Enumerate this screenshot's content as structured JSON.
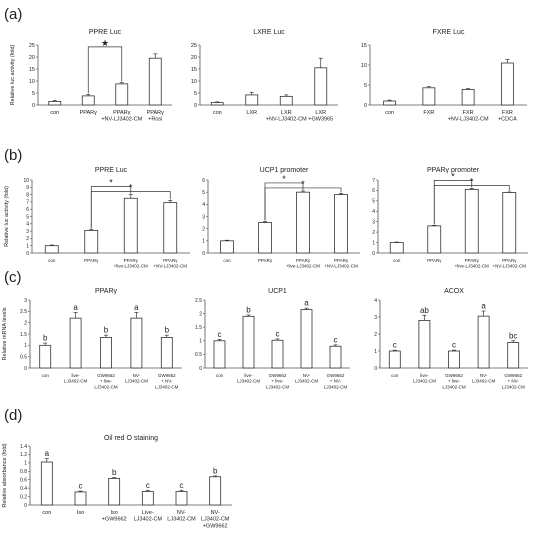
{
  "panels": [
    {
      "label": "(a)"
    },
    {
      "label": "(b)"
    },
    {
      "label": "(c)"
    },
    {
      "label": "(d)"
    }
  ],
  "chart_data": [
    {
      "id": "a1",
      "type": "bar",
      "title": "PPRE Luc",
      "ylabel": "Relative luc activity (fold)",
      "ylim": [
        0,
        25
      ],
      "yticks": [
        0,
        5,
        10,
        15,
        20,
        25
      ],
      "categories": [
        [
          "con"
        ],
        [
          "PPARγ"
        ],
        [
          "PPARγ",
          "+NV-LJ3402-CM"
        ],
        [
          "PPARγ",
          "+Rosi"
        ]
      ],
      "values": [
        1.5,
        3.8,
        8.8,
        19.5
      ],
      "errors": [
        0.4,
        0.5,
        0.5,
        1.8
      ],
      "letters": [],
      "brackets": [
        {
          "from": 1,
          "to": 2,
          "label": "★"
        }
      ]
    },
    {
      "id": "a2",
      "type": "bar",
      "title": "LXRE Luc",
      "ylabel": "",
      "ylim": [
        0,
        25
      ],
      "yticks": [
        0,
        5,
        10,
        15,
        20,
        25
      ],
      "categories": [
        [
          "con"
        ],
        [
          "LXR"
        ],
        [
          "LXR",
          "+NV-LJ3402-CM"
        ],
        [
          "LXR",
          "+GW3965"
        ]
      ],
      "values": [
        1.0,
        4.2,
        3.6,
        15.5
      ],
      "errors": [
        0.3,
        1.1,
        0.6,
        4.0
      ],
      "letters": [],
      "brackets": []
    },
    {
      "id": "a3",
      "type": "bar",
      "title": "FXRE Luc",
      "ylabel": "",
      "ylim": [
        0,
        15
      ],
      "yticks": [
        0,
        5,
        10,
        15
      ],
      "categories": [
        [
          "con"
        ],
        [
          "FXR"
        ],
        [
          "FXR",
          "+NV-LJ3402-CM"
        ],
        [
          "FXR",
          "+CDCA"
        ]
      ],
      "values": [
        1.0,
        4.3,
        3.9,
        10.5
      ],
      "errors": [
        0.2,
        0.3,
        0.2,
        0.9
      ],
      "letters": [],
      "brackets": []
    },
    {
      "id": "b1",
      "type": "bar",
      "title": "PPRE Luc",
      "ylabel": "Relative luc activity (fold)",
      "ylim": [
        0,
        10
      ],
      "yticks": [
        0,
        1,
        2,
        3,
        4,
        5,
        6,
        7,
        8,
        9,
        10
      ],
      "categories": [
        [
          "con"
        ],
        [
          "PPARγ"
        ],
        [
          "PPARγ",
          "+live-LJ3402-CM"
        ],
        [
          "PPARγ",
          "+NV-LJ3402-CM"
        ]
      ],
      "values": [
        1.0,
        3.1,
        7.5,
        6.9
      ],
      "errors": [
        0.1,
        0.1,
        0.5,
        0.3
      ],
      "letters": [],
      "brackets": [
        {
          "from": 1,
          "to": 2,
          "label": "*"
        },
        {
          "from": 1,
          "to": 3,
          "label": "*"
        }
      ]
    },
    {
      "id": "b2",
      "type": "bar",
      "title": "UCP1 promoter",
      "ylabel": "",
      "ylim": [
        0,
        6
      ],
      "yticks": [
        0,
        1,
        2,
        3,
        4,
        5,
        6
      ],
      "categories": [
        [
          "con"
        ],
        [
          "PPARγ"
        ],
        [
          "PPARγ",
          "+live-LJ3402-CM"
        ],
        [
          "PPARγ",
          "+NV-LJ3402-CM"
        ]
      ],
      "values": [
        1.0,
        2.5,
        5.0,
        4.8
      ],
      "errors": [
        0.05,
        0.1,
        0.1,
        0.1
      ],
      "letters": [],
      "brackets": [
        {
          "from": 1,
          "to": 2,
          "label": "*"
        },
        {
          "from": 1,
          "to": 3,
          "label": "*"
        }
      ]
    },
    {
      "id": "b3",
      "type": "bar",
      "title": "PPARγ promoter",
      "ylabel": "",
      "ylim": [
        0,
        7
      ],
      "yticks": [
        0,
        1,
        2,
        3,
        4,
        5,
        6,
        7
      ],
      "categories": [
        [
          "con"
        ],
        [
          "PPARγ"
        ],
        [
          "PPARγ",
          "+live-LJ3402-CM"
        ],
        [
          "PPARγ",
          "+NV-LJ3402-CM"
        ]
      ],
      "values": [
        1.0,
        2.6,
        6.1,
        5.8
      ],
      "errors": [
        0.05,
        0.05,
        0.1,
        0.05
      ],
      "letters": [],
      "brackets": [
        {
          "from": 1,
          "to": 2,
          "label": "*"
        },
        {
          "from": 1,
          "to": 3,
          "label": "*"
        }
      ]
    },
    {
      "id": "c1",
      "type": "bar",
      "title": "PPARγ",
      "ylabel": "Relative mRNA levels",
      "ylim": [
        0,
        3
      ],
      "yticks": [
        0,
        0.5,
        1,
        1.5,
        2,
        2.5,
        3
      ],
      "categories": [
        [
          "con"
        ],
        [
          "live-",
          "LJ3402-CM"
        ],
        [
          "GW9662",
          "+ live-",
          "LJ3402-CM"
        ],
        [
          "NV-",
          "LJ3402-CM"
        ],
        [
          "GW9662",
          "+ NV-",
          "LJ3402-CM"
        ]
      ],
      "values": [
        1.0,
        2.2,
        1.35,
        2.2,
        1.35
      ],
      "errors": [
        0.1,
        0.25,
        0.1,
        0.25,
        0.1
      ],
      "letters": [
        "b",
        "a",
        "b",
        "a",
        "b"
      ],
      "brackets": []
    },
    {
      "id": "c2",
      "type": "bar",
      "title": "UCP1",
      "ylabel": "",
      "ylim": [
        0,
        2.5
      ],
      "yticks": [
        0,
        0.5,
        1,
        1.5,
        2,
        2.5
      ],
      "categories": [
        [
          "con"
        ],
        [
          "live-",
          "LJ3402-CM"
        ],
        [
          "GW9662",
          "+ live-",
          "LJ3402-CM"
        ],
        [
          "NV-",
          "LJ3402-CM"
        ],
        [
          "GW9662",
          "+ NV-",
          "LJ3402-CM"
        ]
      ],
      "values": [
        1.0,
        1.9,
        1.02,
        2.15,
        0.8
      ],
      "errors": [
        0.05,
        0.05,
        0.05,
        0.05,
        0.05
      ],
      "letters": [
        "c",
        "b",
        "c",
        "a",
        "c"
      ],
      "brackets": []
    },
    {
      "id": "c3",
      "type": "bar",
      "title": "ACOX",
      "ylabel": "",
      "ylim": [
        0,
        4
      ],
      "yticks": [
        0,
        1,
        2,
        3,
        4
      ],
      "categories": [
        [
          "con"
        ],
        [
          "live-",
          "LJ3402-CM"
        ],
        [
          "GW9662",
          "+ live-",
          "LJ3402-CM"
        ],
        [
          "NV-",
          "LJ3402-CM"
        ],
        [
          "GW9662",
          "+ NV-",
          "LJ3402-CM"
        ]
      ],
      "values": [
        1.0,
        2.8,
        1.0,
        3.05,
        1.5
      ],
      "errors": [
        0.05,
        0.3,
        0.05,
        0.3,
        0.1
      ],
      "letters": [
        "c",
        "ab",
        "c",
        "a",
        "bc"
      ],
      "brackets": []
    },
    {
      "id": "d1",
      "type": "bar",
      "title": "Oil red O staining",
      "ylabel": "Relative absorbance (fold)",
      "ylim": [
        0,
        1.4
      ],
      "yticks": [
        0,
        0.2,
        0.4,
        0.6,
        0.8,
        1,
        1.2,
        1.4
      ],
      "categories": [
        [
          "con"
        ],
        [
          "Iso"
        ],
        [
          "Iso",
          "+GW9662"
        ],
        [
          "Live-",
          "LJ3402-CM"
        ],
        [
          "NV-",
          "LJ3402-CM"
        ],
        [
          "NV-",
          "LJ3402-CM",
          "+GW9662"
        ]
      ],
      "values": [
        1.02,
        0.31,
        0.63,
        0.32,
        0.32,
        0.67
      ],
      "errors": [
        0.08,
        0.02,
        0.02,
        0.03,
        0.03,
        0.02
      ],
      "letters": [
        "a",
        "c",
        "b",
        "c",
        "c",
        "b"
      ],
      "brackets": []
    }
  ]
}
